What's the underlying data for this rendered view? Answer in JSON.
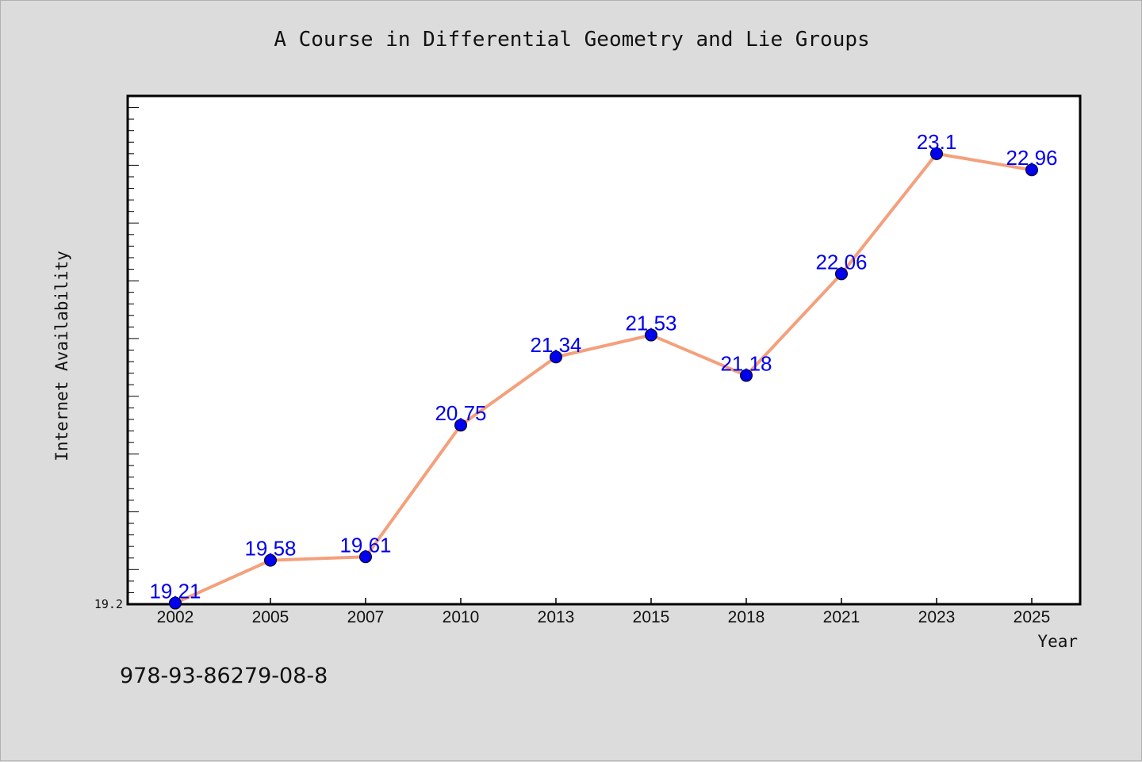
{
  "title": "A Course in Differential Geometry and Lie Groups",
  "footer_text": "978-93-86279-08-8",
  "colors": {
    "background": "#dcdcdc",
    "plot_background": "#ffffff",
    "line": "#f4a07c",
    "marker": "#0000ee",
    "data_label": "#0000ee"
  },
  "chart_data": {
    "type": "line",
    "xlabel": "Year",
    "ylabel": "Internet Availability",
    "categories": [
      "2002",
      "2005",
      "2007",
      "2010",
      "2013",
      "2015",
      "2018",
      "2021",
      "2023",
      "2025"
    ],
    "series": [
      {
        "values": [
          19.21,
          19.58,
          19.61,
          20.75,
          21.34,
          21.53,
          21.18,
          22.06,
          23.1,
          22.96
        ]
      }
    ],
    "ylim": [
      19.2,
      23.6
    ],
    "y_tick_labels": [
      "19.2"
    ],
    "grid": false,
    "legend": "none"
  }
}
